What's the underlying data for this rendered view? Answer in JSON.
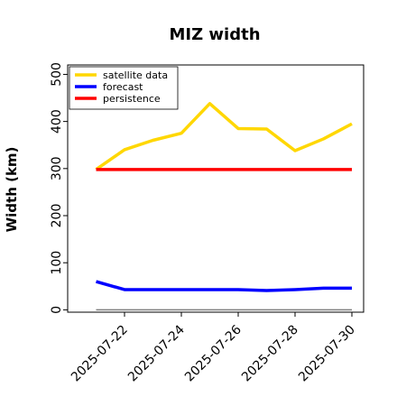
{
  "chart_data": {
    "type": "line",
    "title": "MIZ width",
    "xlabel": "",
    "ylabel": "Width (km)",
    "x": [
      "2025-07-21",
      "2025-07-22",
      "2025-07-23",
      "2025-07-24",
      "2025-07-25",
      "2025-07-26",
      "2025-07-27",
      "2025-07-28",
      "2025-07-29",
      "2025-07-30"
    ],
    "xticks": [
      "2025-07-22",
      "2025-07-24",
      "2025-07-26",
      "2025-07-28",
      "2025-07-30"
    ],
    "xtick_colors": [
      "#2e8b2e",
      "#000000",
      "#000000",
      "#000000",
      "#000000"
    ],
    "xlim": [
      "2025-07-20",
      "2025-07-30"
    ],
    "yticks": [
      0,
      100,
      200,
      300,
      400,
      500
    ],
    "ylim": [
      -5,
      520
    ],
    "reference_line": {
      "value": 0,
      "color": "#808080"
    },
    "series": [
      {
        "name": "satellite data",
        "color": "#ffd700",
        "values": [
          298,
          340,
          360,
          375,
          438,
          385,
          384,
          338,
          363,
          395
        ]
      },
      {
        "name": "forecast",
        "color": "#0000ff",
        "values": [
          60,
          43,
          43,
          43,
          43,
          43,
          41,
          43,
          46,
          46
        ]
      },
      {
        "name": "persistence",
        "color": "#ff0000",
        "values": [
          298,
          298,
          298,
          298,
          298,
          298,
          298,
          298,
          298,
          298
        ]
      }
    ],
    "legend_position": "top-left",
    "grid": false
  }
}
